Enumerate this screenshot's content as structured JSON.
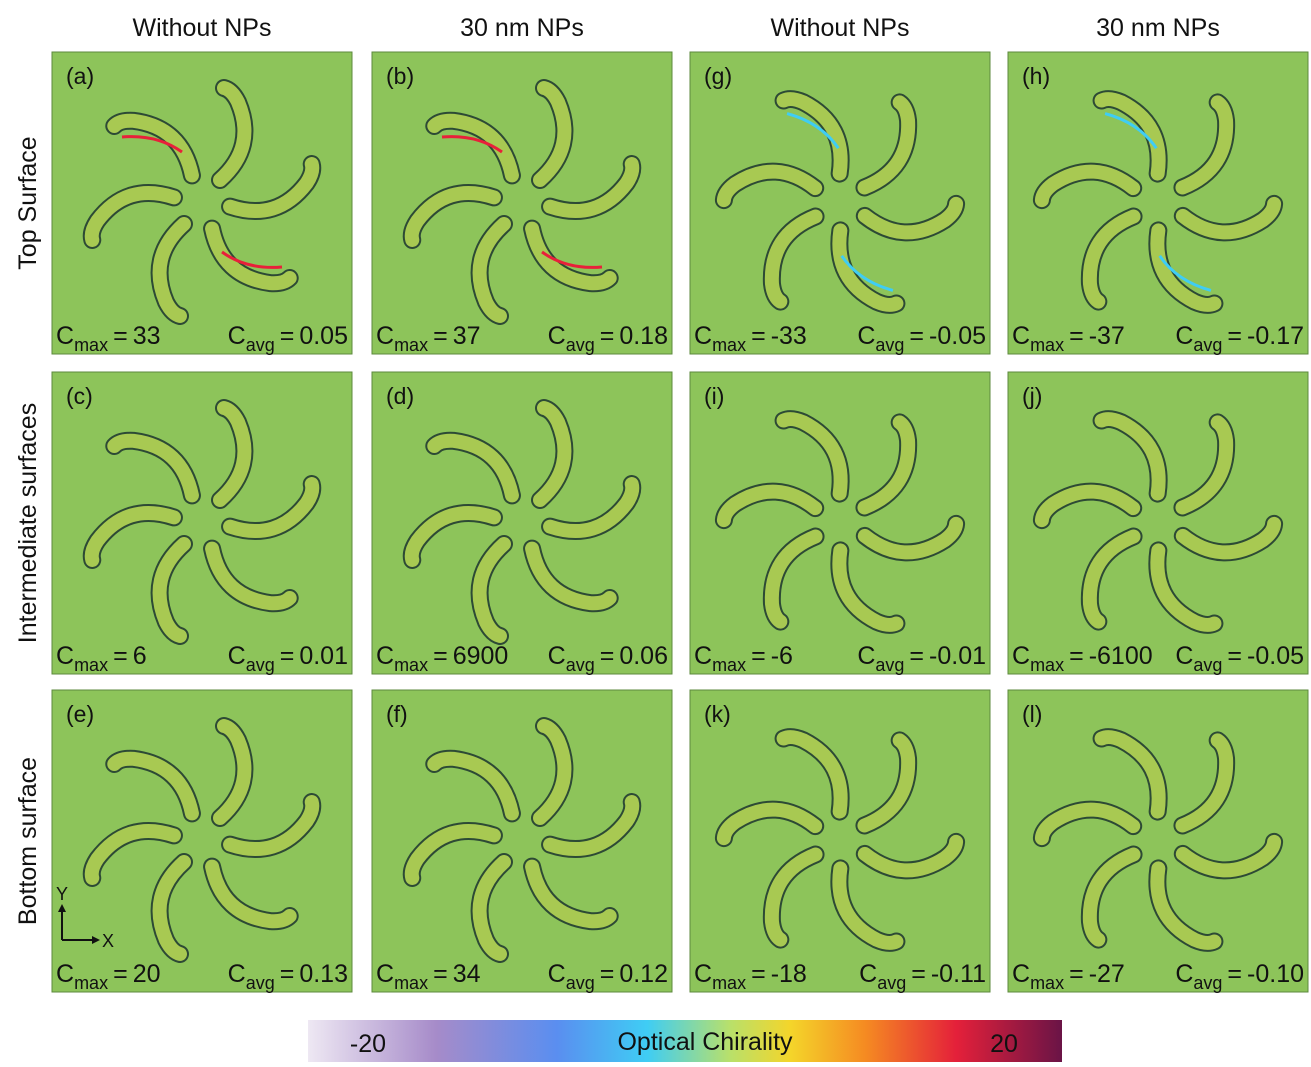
{
  "column_headers": [
    "Without NPs",
    "30 nm NPs",
    "Without NPs",
    "30 nm NPs"
  ],
  "row_headers": [
    "Top Surface",
    "Intermediate surfaces",
    "Bottom surface"
  ],
  "symbol": "C",
  "max_subscript": "max",
  "avg_subscript": "avg",
  "equals": "=",
  "panels": [
    {
      "label": "(a)",
      "cmax": "33",
      "cavg": "0.05"
    },
    {
      "label": "(b)",
      "cmax": "37",
      "cavg": "0.18"
    },
    {
      "label": "(g)",
      "cmax": "-33",
      "cavg": "-0.05"
    },
    {
      "label": "(h)",
      "cmax": "-37",
      "cavg": "-0.17"
    },
    {
      "label": "(c)",
      "cmax": "6",
      "cavg": "0.01"
    },
    {
      "label": "(d)",
      "cmax": "6900",
      "cavg": "0.06"
    },
    {
      "label": "(i)",
      "cmax": "-6",
      "cavg": "-0.01"
    },
    {
      "label": "(j)",
      "cmax": "-6100",
      "cavg": "-0.05"
    },
    {
      "label": "(e)",
      "cmax": "20",
      "cavg": "0.13"
    },
    {
      "label": "(f)",
      "cmax": "34",
      "cavg": "0.12"
    },
    {
      "label": "(k)",
      "cmax": "-18",
      "cavg": "-0.11"
    },
    {
      "label": "(l)",
      "cmax": "-27",
      "cavg": "-0.10"
    }
  ],
  "axes": {
    "y": "Y",
    "x": "X"
  },
  "colorbar": {
    "title": "Optical Chirality",
    "min": "-20",
    "max": "20"
  }
}
